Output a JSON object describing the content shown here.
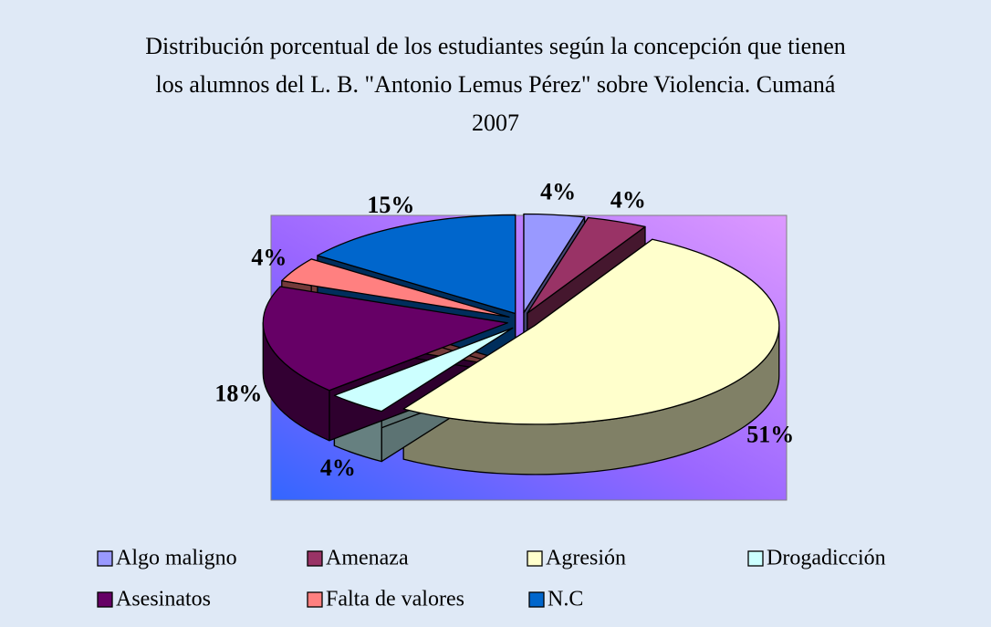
{
  "chart_data": {
    "type": "pie",
    "title": "Distribución  porcentual de los estudiantes según la concepción que tienen los alumnos del L. B. \"Antonio Lemus Pérez\" sobre Violencia. Cumaná 2007",
    "categories": [
      "Algo maligno",
      "Amenaza",
      "Agresión",
      "Drogadicción",
      "Asesinatos",
      "Falta de valores",
      "N.C"
    ],
    "values": [
      4,
      4,
      51,
      4,
      18,
      4,
      15
    ],
    "value_labels": [
      "4%",
      "4%",
      "51%",
      "4%",
      "18%",
      "4%",
      "15%"
    ],
    "colors": [
      "#9999ff",
      "#993366",
      "#ffffcc",
      "#ccffff",
      "#660066",
      "#ff8080",
      "#0066cc"
    ],
    "legend": "bottom"
  }
}
